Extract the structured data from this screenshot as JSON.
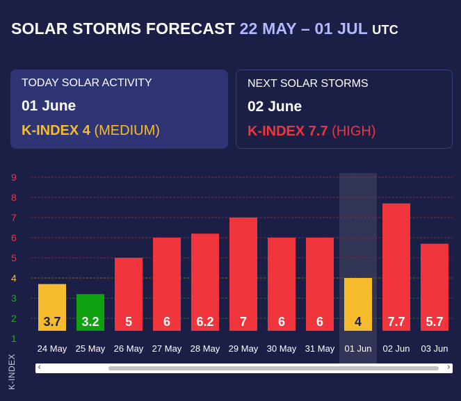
{
  "header": {
    "title": "SOLAR STORMS FORECAST",
    "range": "22 MAY – 01 JUL",
    "tz": "UTC"
  },
  "today_card": {
    "label": "TODAY SOLAR ACTIVITY",
    "date": "01 June",
    "kindex": "K-INDEX 4",
    "level": "(MEDIUM)"
  },
  "next_card": {
    "label": "NEXT SOLAR STORMS",
    "date": "02 June",
    "kindex": "K-INDEX 7.7",
    "level": "(HIGH)"
  },
  "colors": {
    "background": "#1c1f45",
    "low": "#0fa10f",
    "medium": "#f6bc2d",
    "high": "#f0353d",
    "tick_low": "#23a823",
    "tick_medium": "#f6bc2d",
    "tick_high": "#f0353d"
  },
  "chart_data": {
    "type": "bar",
    "categories": [
      "24 May",
      "25 May",
      "26 May",
      "27 May",
      "28 May",
      "29 May",
      "30 May",
      "31 May",
      "01 Jun",
      "02 Jun",
      "03 Jun"
    ],
    "values": [
      3.7,
      3.2,
      5,
      6,
      6.2,
      7,
      6,
      6,
      4,
      7.7,
      5.7
    ],
    "value_labels": [
      "3.7",
      "3.2",
      "5",
      "6",
      "6.2",
      "7",
      "6",
      "6",
      "4",
      "7.7",
      "5.7"
    ],
    "bar_levels": [
      "medium",
      "low",
      "high",
      "high",
      "high",
      "high",
      "high",
      "high",
      "medium",
      "high",
      "high"
    ],
    "highlighted_category": "01 Jun",
    "ylabel": "K-INDEX",
    "yticks": [
      "1",
      "2",
      "3",
      "4",
      "5",
      "6",
      "7",
      "8",
      "9"
    ],
    "ylim": [
      1,
      9
    ],
    "grid": true
  },
  "scrollbar": {
    "left_arrow": "‹",
    "right_arrow": "›"
  }
}
